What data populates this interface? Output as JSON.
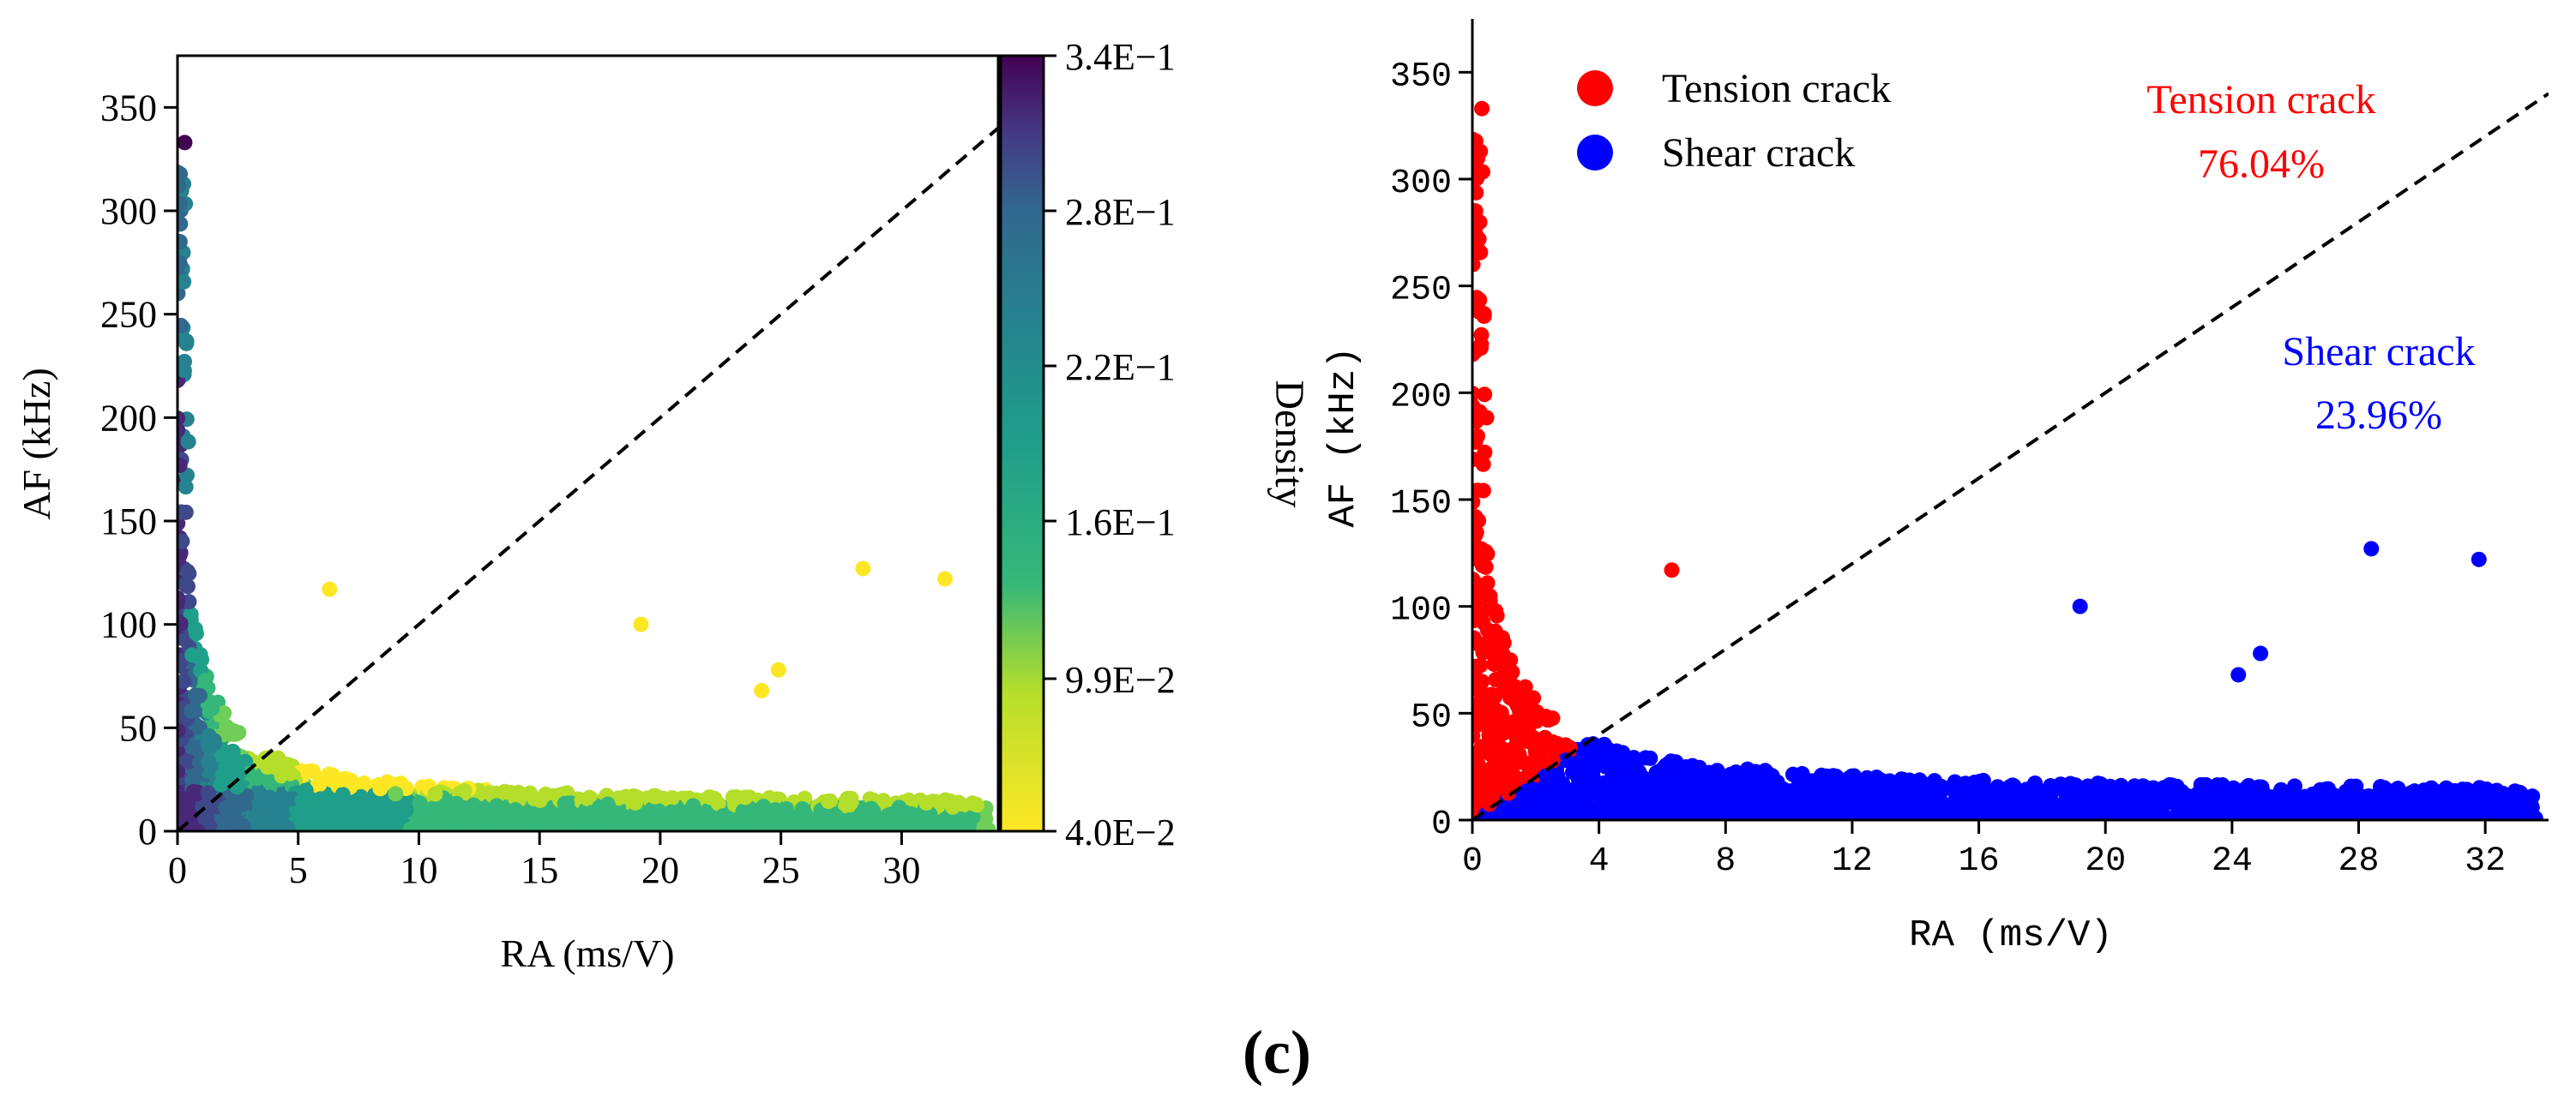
{
  "caption": "(c)",
  "chart_data": [
    {
      "type": "scatter",
      "title": "",
      "xlabel": "RA (ms/V)",
      "ylabel": "AF (kHz)",
      "xlim": [
        0,
        34
      ],
      "ylim": [
        0,
        375
      ],
      "xticks": [
        0,
        5,
        10,
        15,
        20,
        25,
        30
      ],
      "yticks": [
        0,
        50,
        100,
        150,
        200,
        250,
        300,
        350
      ],
      "grid": false,
      "reference_line": {
        "style": "dashed",
        "from": [
          0,
          0
        ],
        "to": [
          34,
          340
        ]
      },
      "colorbar": {
        "label": "Density",
        "min": 0.04,
        "max": 0.34,
        "tick_labels": [
          "3.4E−1",
          "2.8E−1",
          "2.2E−1",
          "1.6E−1",
          "9.9E−2",
          "4.0E−2"
        ],
        "tick_values": [
          0.34,
          0.28,
          0.22,
          0.16,
          0.099,
          0.04
        ],
        "colormap": "viridis (reversed)"
      },
      "highlighted_points": [
        {
          "x": 0.3,
          "y": 333
        },
        {
          "x": 6.3,
          "y": 117
        },
        {
          "x": 19.2,
          "y": 100
        },
        {
          "x": 24.2,
          "y": 68
        },
        {
          "x": 24.9,
          "y": 78
        },
        {
          "x": 28.4,
          "y": 127
        },
        {
          "x": 31.8,
          "y": 122
        }
      ]
    },
    {
      "type": "scatter",
      "title": "",
      "xlabel": "RA  (ms/V)",
      "ylabel": "AF  (kHz)",
      "xlim": [
        0,
        34
      ],
      "ylim": [
        0,
        375
      ],
      "xticks": [
        0,
        4,
        8,
        12,
        16,
        20,
        24,
        28,
        32
      ],
      "yticks": [
        0,
        50,
        100,
        150,
        200,
        250,
        300,
        350
      ],
      "grid": false,
      "reference_line": {
        "style": "dashed",
        "from": [
          0,
          0
        ],
        "to": [
          34,
          340
        ]
      },
      "series": [
        {
          "name": "Tension crack",
          "color": "#ff0000",
          "percentage": "76.04%",
          "region": "AF/RA > 10"
        },
        {
          "name": "Shear crack",
          "color": "#0000ff",
          "percentage": "23.96%",
          "region": "AF/RA < 10"
        }
      ],
      "legend": {
        "placement": "top-left",
        "entries": [
          "Tension crack",
          "Shear crack"
        ]
      },
      "annotations": [
        {
          "name": "Tension crack",
          "value": "76.04%",
          "color": "#ff0000"
        },
        {
          "name": "Shear crack",
          "value": "23.96%",
          "color": "#0000ff"
        }
      ],
      "highlighted_points": [
        {
          "x": 0.3,
          "y": 333,
          "series": "Tension crack"
        },
        {
          "x": 6.3,
          "y": 117,
          "series": "Tension crack"
        },
        {
          "x": 19.2,
          "y": 100,
          "series": "Shear crack"
        },
        {
          "x": 24.2,
          "y": 68,
          "series": "Shear crack"
        },
        {
          "x": 24.9,
          "y": 78,
          "series": "Shear crack"
        },
        {
          "x": 28.4,
          "y": 127,
          "series": "Shear crack"
        },
        {
          "x": 31.8,
          "y": 122,
          "series": "Shear crack"
        }
      ]
    }
  ]
}
